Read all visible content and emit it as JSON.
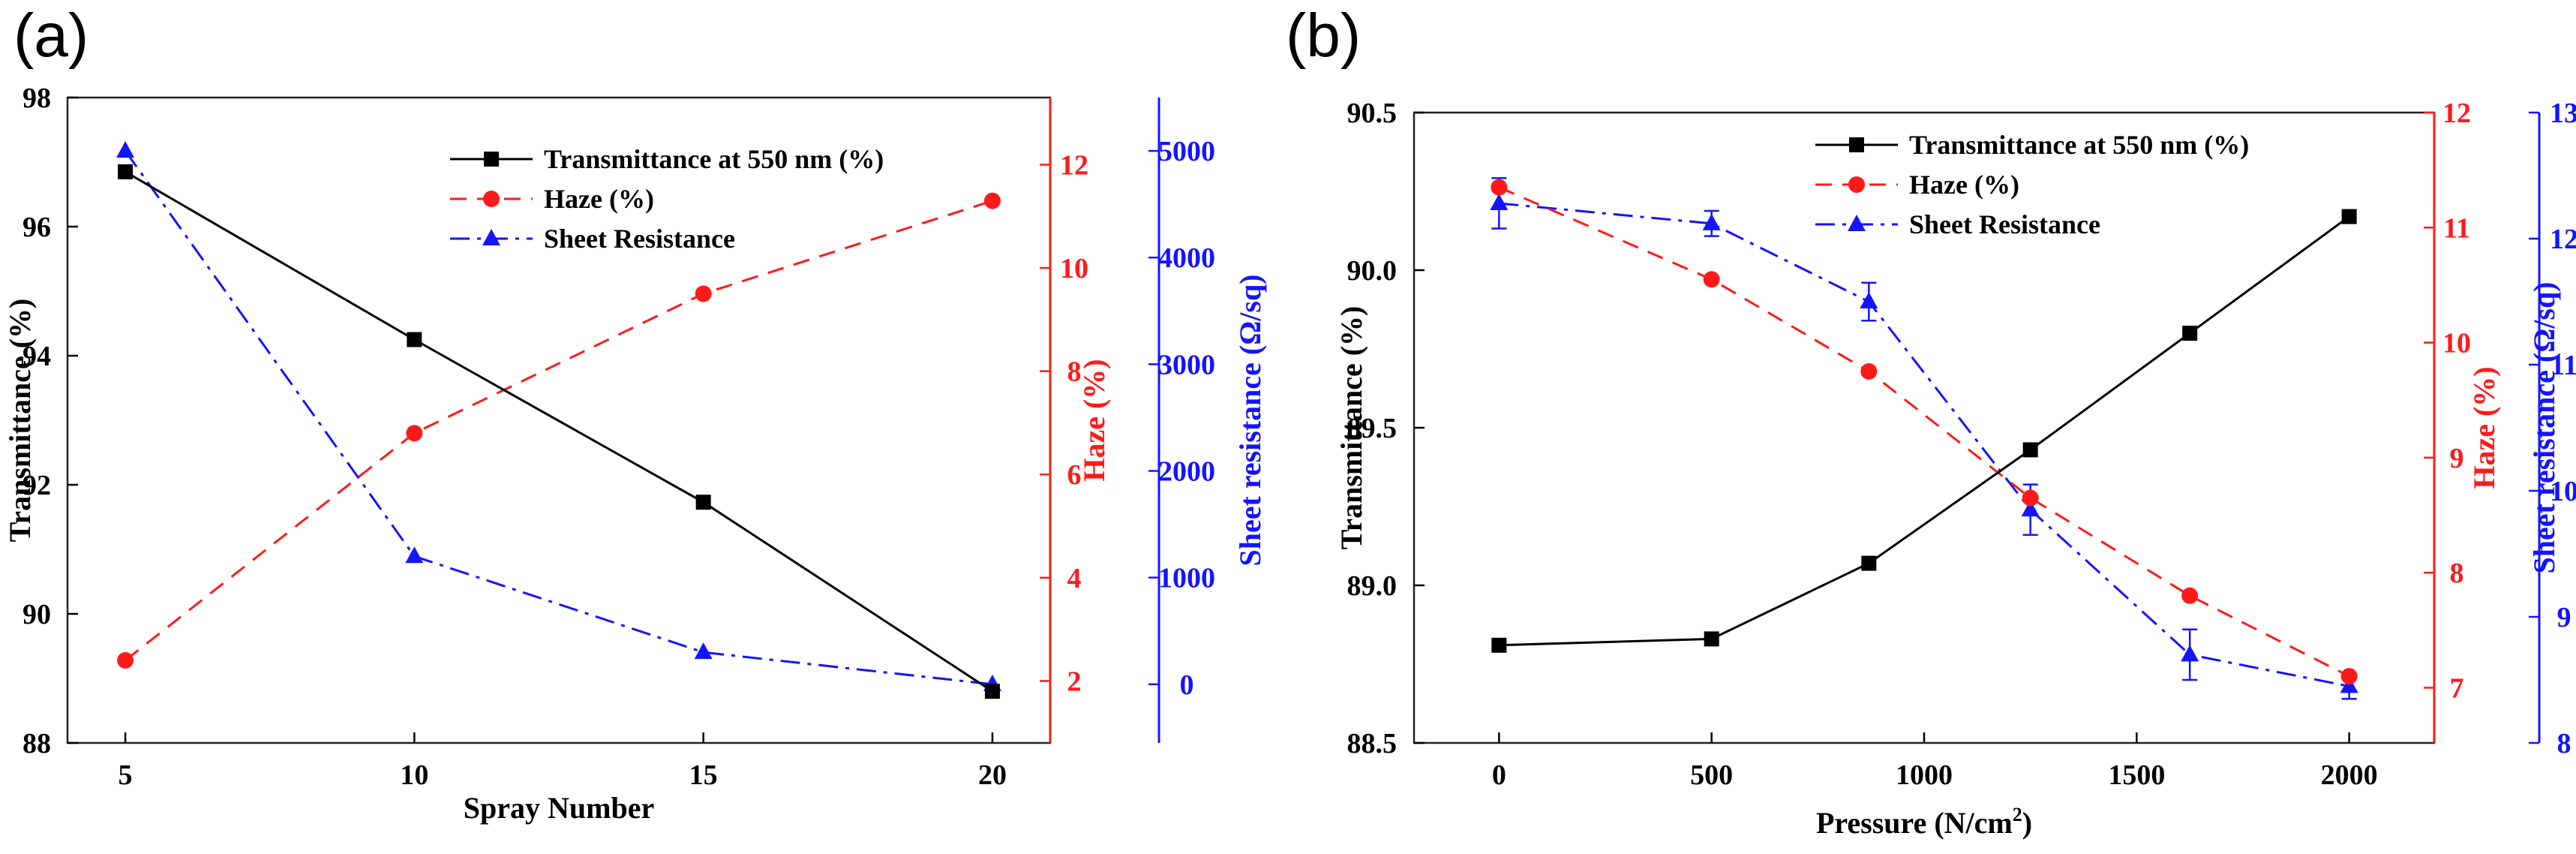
{
  "colors": {
    "black": "#000000",
    "red": "#ff1a1a",
    "blue": "#1414ff",
    "frame": "#222222"
  },
  "chart_data": [
    {
      "panel_label": "(a)",
      "type": "line",
      "xlabel": "Spray Number",
      "x": [
        5,
        10,
        15,
        20
      ],
      "xlim": [
        4,
        21
      ],
      "xticks": [
        5,
        10,
        15,
        20
      ],
      "legend": [
        "Transmittance at 550 nm (%)",
        "Haze (%)",
        "Sheet Resistance"
      ],
      "axes": [
        {
          "label": "Transmittance (%)",
          "side": "left",
          "color": "#000000",
          "lim": [
            88,
            98
          ],
          "ticks": [
            88,
            90,
            92,
            94,
            96,
            98
          ]
        },
        {
          "label": "Haze (%)",
          "side": "right",
          "color": "#ff1a1a",
          "lim": [
            0.8,
            13.3
          ],
          "ticks": [
            2,
            4,
            6,
            8,
            10,
            12
          ]
        },
        {
          "label": "Sheet resistance (Ω/sq)",
          "side": "right-outer",
          "color": "#1414ff",
          "lim": [
            -550,
            5500
          ],
          "ticks": [
            0,
            1000,
            2000,
            3000,
            4000,
            5000
          ]
        }
      ],
      "series": [
        {
          "name": "Transmittance at 550 nm (%)",
          "axis": 0,
          "color": "#000000",
          "marker": "square",
          "dash": "solid",
          "values": [
            96.85,
            94.25,
            91.73,
            88.8
          ]
        },
        {
          "name": "Haze (%)",
          "axis": 1,
          "color": "#ff1a1a",
          "marker": "circle",
          "dash": "dashed",
          "values": [
            2.4,
            6.8,
            9.5,
            11.3
          ]
        },
        {
          "name": "Sheet Resistance",
          "axis": 2,
          "color": "#1414ff",
          "marker": "triangle",
          "dash": "dashdot",
          "values": [
            5000,
            1200,
            300,
            0
          ]
        }
      ]
    },
    {
      "panel_label": "(b)",
      "type": "line",
      "xlabel": "Pressure (N/cm",
      "xlabel_sup": "2",
      "xlabel_end": ")",
      "x": [
        0,
        500,
        870,
        1250,
        1625,
        2000
      ],
      "xlim": [
        -200,
        2200
      ],
      "xticks": [
        0,
        500,
        1000,
        1500,
        2000
      ],
      "legend": [
        "Transmittance at 550 nm (%)",
        "Haze (%)",
        "Sheet Resistance"
      ],
      "axes": [
        {
          "label": "Transmittance (%)",
          "side": "left",
          "color": "#000000",
          "lim": [
            88.5,
            90.5
          ],
          "ticks": [
            88.5,
            89.0,
            89.5,
            90.0,
            90.5
          ]
        },
        {
          "label": "Haze (%)",
          "side": "right",
          "color": "#ff1a1a",
          "lim": [
            6.52,
            12.0
          ],
          "ticks": [
            7,
            8,
            9,
            10,
            11,
            12
          ]
        },
        {
          "label": "Sheet resistance (Ω/sq)",
          "side": "right-outer",
          "color": "#1414ff",
          "lim": [
            8.0,
            13.0
          ],
          "ticks": [
            8,
            9,
            10,
            11,
            12,
            13
          ]
        }
      ],
      "series": [
        {
          "name": "Transmittance at 550 nm (%)",
          "axis": 0,
          "color": "#000000",
          "marker": "square",
          "dash": "solid",
          "values": [
            88.81,
            88.83,
            89.07,
            89.43,
            89.8,
            90.17
          ]
        },
        {
          "name": "Haze (%)",
          "axis": 1,
          "color": "#ff1a1a",
          "marker": "circle",
          "dash": "dashed",
          "values": [
            11.35,
            10.55,
            9.75,
            8.65,
            7.8,
            7.1
          ]
        },
        {
          "name": "Sheet Resistance",
          "axis": 2,
          "color": "#1414ff",
          "marker": "triangle",
          "dash": "dashdot",
          "values": [
            12.28,
            12.12,
            11.5,
            9.85,
            8.7,
            8.45
          ],
          "errors": [
            0.2,
            0.1,
            0.15,
            0.2,
            0.2,
            0.1
          ]
        }
      ]
    }
  ]
}
